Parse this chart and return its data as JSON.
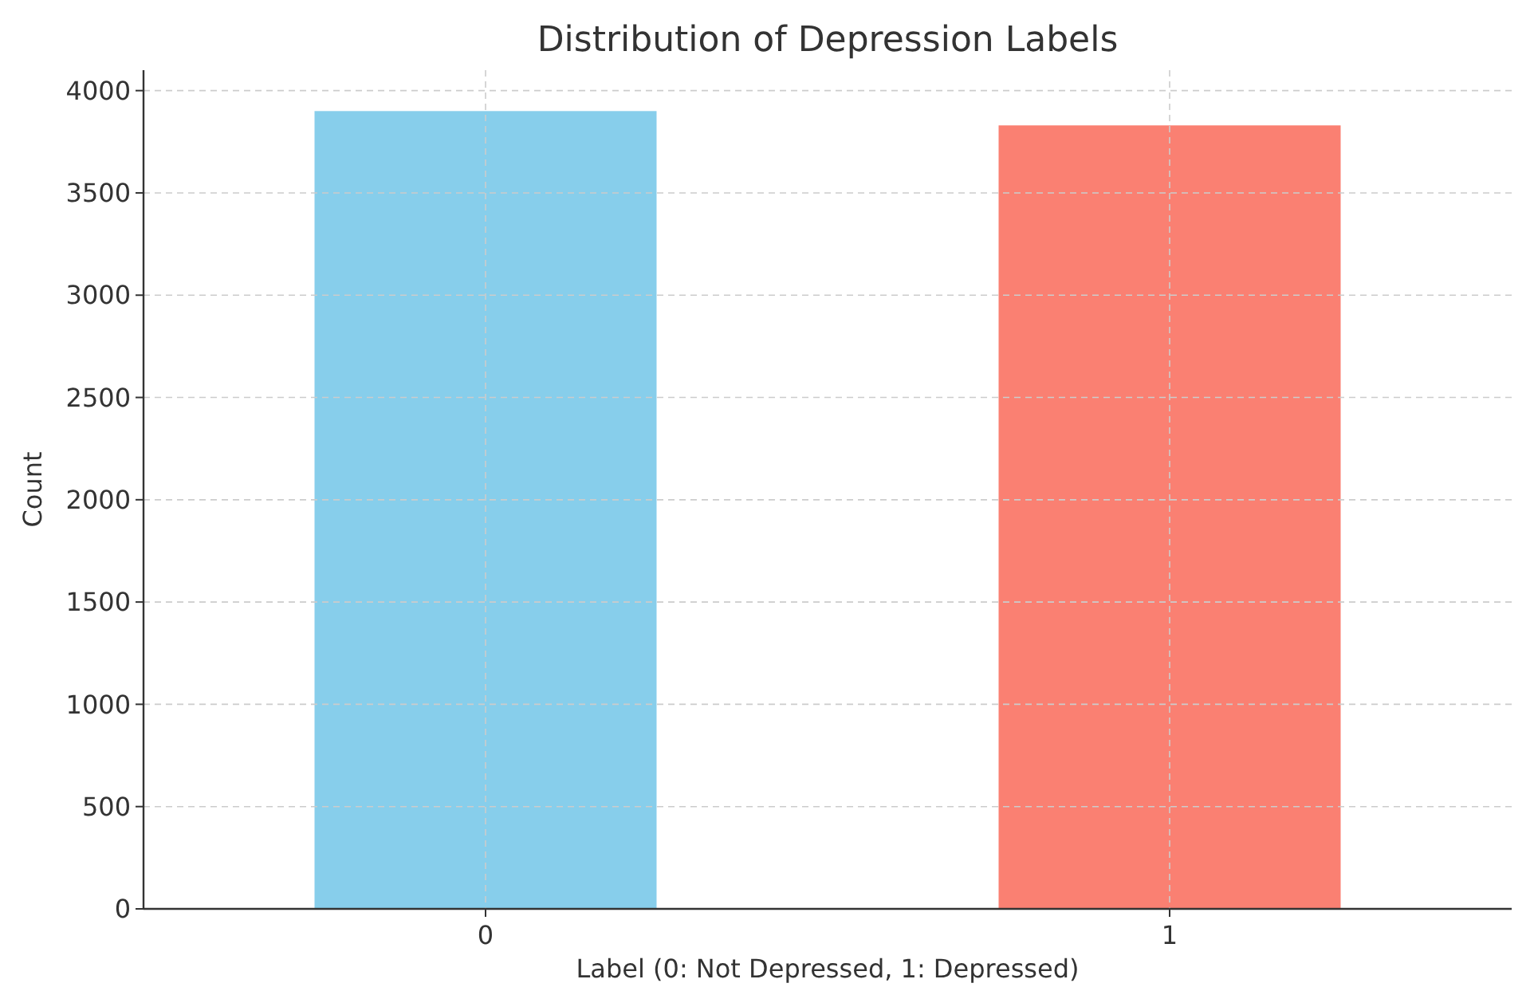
{
  "chart_data": {
    "type": "bar",
    "title": "Distribution of Depression Labels",
    "xlabel": "Label (0: Not Depressed, 1: Depressed)",
    "ylabel": "Count",
    "categories": [
      "0",
      "1"
    ],
    "values": [
      3900,
      3830
    ],
    "colors": [
      "#87ceeb",
      "#fa8072"
    ],
    "ylim": [
      0,
      4100
    ],
    "yticks": [
      0,
      500,
      1000,
      1500,
      2000,
      2500,
      3000,
      3500,
      4000
    ],
    "grid": true
  }
}
